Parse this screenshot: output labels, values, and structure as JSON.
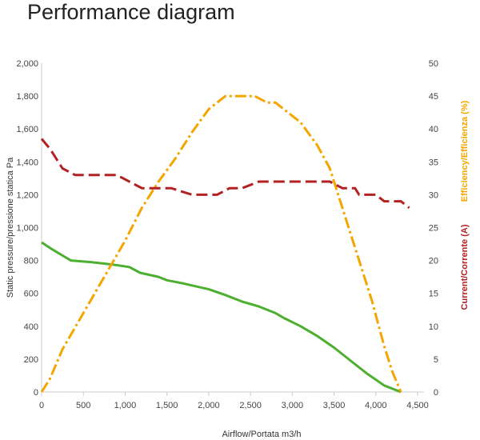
{
  "page": {
    "title": "Performance diagram"
  },
  "chart_data": {
    "type": "line",
    "title": "Performance diagram",
    "xlabel": "Airflow/Portata m3/h",
    "ylabel_left": "Static pressure/pressione statica Pa",
    "ylabel_right_1": "Efficiency/Efficienza (%)",
    "ylabel_right_2": "Current/Corrente (A)",
    "xlim": [
      0,
      4500
    ],
    "ylim_left": [
      0,
      2000
    ],
    "ylim_right": [
      0,
      50
    ],
    "grid": false,
    "x_ticks": [
      0,
      500,
      1000,
      1500,
      2000,
      2500,
      3000,
      3500,
      4000,
      4500
    ],
    "x_tick_labels": [
      "0",
      "500",
      "1,000",
      "1,500",
      "2,000",
      "2,500",
      "3,000",
      "3,500",
      "4,000",
      "4,500"
    ],
    "y_left_ticks": [
      0,
      200,
      400,
      600,
      800,
      1000,
      1200,
      1400,
      1600,
      1800,
      2000
    ],
    "y_left_tick_labels": [
      "0",
      "200",
      "400",
      "600",
      "800",
      "1,000",
      "1,200",
      "1,400",
      "1,600",
      "1,800",
      "2,000"
    ],
    "y_right_ticks": [
      0,
      5,
      10,
      15,
      20,
      25,
      30,
      35,
      40,
      45,
      50
    ],
    "y_right_tick_labels": [
      "0",
      "5",
      "10",
      "15",
      "20",
      "25",
      "30",
      "35",
      "40",
      "45",
      "50"
    ],
    "series": [
      {
        "axis": "left",
        "color": "#4caf2f",
        "style": "solid",
        "points": [
          [
            0,
            910
          ],
          [
            120,
            870
          ],
          [
            250,
            830
          ],
          [
            350,
            800
          ],
          [
            600,
            790
          ],
          [
            850,
            775
          ],
          [
            1050,
            760
          ],
          [
            1180,
            725
          ],
          [
            1400,
            700
          ],
          [
            1500,
            680
          ],
          [
            1700,
            660
          ],
          [
            2000,
            625
          ],
          [
            2200,
            590
          ],
          [
            2400,
            550
          ],
          [
            2600,
            520
          ],
          [
            2800,
            480
          ],
          [
            2900,
            450
          ],
          [
            3100,
            400
          ],
          [
            3300,
            340
          ],
          [
            3500,
            270
          ],
          [
            3700,
            190
          ],
          [
            3900,
            110
          ],
          [
            4100,
            40
          ],
          [
            4300,
            0
          ]
        ]
      },
      {
        "axis": "right",
        "color": "#f5a500",
        "style": "dashdot",
        "points": [
          [
            0,
            0
          ],
          [
            100,
            2
          ],
          [
            250,
            6.5
          ],
          [
            500,
            12
          ],
          [
            750,
            17.5
          ],
          [
            1000,
            23
          ],
          [
            1200,
            28
          ],
          [
            1400,
            32
          ],
          [
            1600,
            35.5
          ],
          [
            1800,
            39.5
          ],
          [
            2000,
            43
          ],
          [
            2200,
            45
          ],
          [
            2450,
            45
          ],
          [
            2550,
            45
          ],
          [
            2700,
            44
          ],
          [
            2800,
            44
          ],
          [
            2950,
            42.5
          ],
          [
            3100,
            41
          ],
          [
            3300,
            37.5
          ],
          [
            3450,
            34
          ],
          [
            3550,
            30
          ],
          [
            3700,
            24
          ],
          [
            3800,
            20
          ],
          [
            3950,
            14
          ],
          [
            4100,
            7
          ],
          [
            4200,
            3
          ],
          [
            4300,
            0
          ]
        ]
      },
      {
        "axis": "right",
        "color": "#b22222",
        "style": "dashed",
        "points": [
          [
            0,
            38.5
          ],
          [
            100,
            37
          ],
          [
            250,
            34
          ],
          [
            400,
            33
          ],
          [
            700,
            33
          ],
          [
            900,
            33
          ],
          [
            1050,
            32
          ],
          [
            1200,
            31
          ],
          [
            1550,
            31
          ],
          [
            1800,
            30
          ],
          [
            2100,
            30
          ],
          [
            2250,
            31
          ],
          [
            2400,
            31
          ],
          [
            2600,
            32
          ],
          [
            3000,
            32
          ],
          [
            3450,
            32
          ],
          [
            3600,
            31
          ],
          [
            3750,
            31
          ],
          [
            3800,
            30
          ],
          [
            4000,
            30
          ],
          [
            4100,
            29
          ],
          [
            4300,
            29
          ],
          [
            4400,
            28
          ]
        ]
      }
    ]
  },
  "colors": {
    "axis_right_efficiency": "#f5a500",
    "axis_right_current": "#b22222"
  }
}
